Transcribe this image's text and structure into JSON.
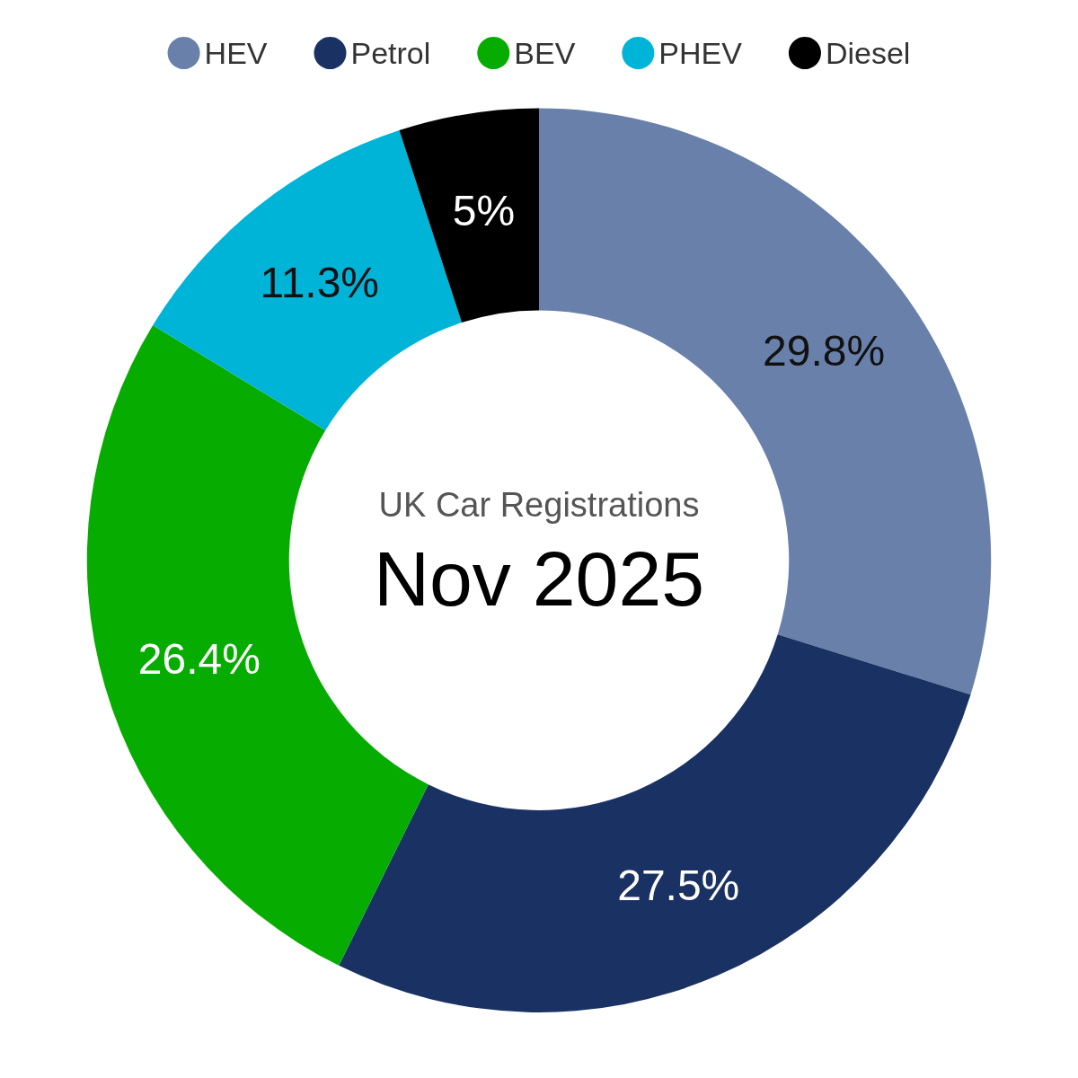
{
  "chart_data": {
    "type": "donut",
    "title": "UK Car Registrations",
    "subtitle": "Nov 2025",
    "categories": [
      "HEV",
      "Petrol",
      "BEV",
      "PHEV",
      "Diesel"
    ],
    "values": [
      29.8,
      27.5,
      26.4,
      11.3,
      5
    ],
    "value_labels": [
      "29.8%",
      "27.5%",
      "26.4%",
      "11.3%",
      "5%"
    ],
    "colors": [
      "#6880aa",
      "#1a3263",
      "#06ad00",
      "#00b4d8",
      "#000000"
    ],
    "legend": "top"
  }
}
